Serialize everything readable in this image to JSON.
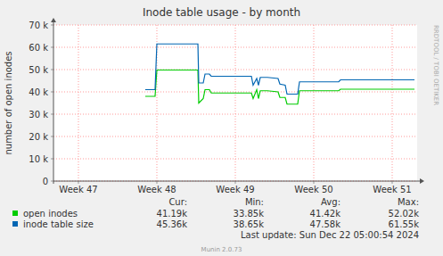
{
  "chart_data": {
    "type": "line",
    "title": "Inode table usage - by month",
    "y_label": "number of open inodes",
    "watermark": "RRDTOOL / TOBI OETIKER",
    "last_update": "Last update: Sun Dec 22 05:00:54 2024",
    "credit": "Munin 2.0.73",
    "stats_headers": [
      "Cur:",
      "Min:",
      "Avg:",
      "Max:"
    ],
    "x": [
      47.852,
      47.977,
      48.0,
      48.523,
      48.534,
      48.591,
      48.614,
      48.67,
      48.693,
      49.205,
      49.227,
      49.273,
      49.295,
      49.318,
      49.409,
      49.545,
      49.568,
      49.636,
      49.659,
      49.795,
      49.818,
      50.318,
      50.341,
      51.284
    ],
    "series": [
      {
        "name": "open inodes",
        "color": "#00cc00",
        "stats": [
          "41.19k",
          "33.85k",
          "41.42k",
          "52.02k"
        ],
        "values": [
          38000,
          38000,
          49800,
          49800,
          35000,
          37000,
          41000,
          41000,
          39500,
          39500,
          37000,
          41000,
          37000,
          40500,
          40500,
          40000,
          37500,
          37500,
          34500,
          34500,
          40500,
          40500,
          41200,
          41200
        ]
      },
      {
        "name": "inode table size",
        "color": "#0066b3",
        "stats": [
          "45.36k",
          "38.65k",
          "47.58k",
          "61.55k"
        ],
        "values": [
          41000,
          41000,
          61500,
          61500,
          44000,
          44000,
          48000,
          48000,
          47000,
          47000,
          43000,
          46000,
          43000,
          46500,
          46500,
          46000,
          43500,
          43000,
          39000,
          39000,
          44500,
          44500,
          45400,
          45400
        ]
      }
    ],
    "xlim": [
      46.682,
      51.318
    ],
    "xticks": [
      {
        "value": 47,
        "label": "Week 47"
      },
      {
        "value": 48,
        "label": "Week 48"
      },
      {
        "value": 49,
        "label": "Week 49"
      },
      {
        "value": 50,
        "label": "Week 50"
      },
      {
        "value": 51,
        "label": "Week 51"
      }
    ],
    "ylim": [
      0,
      70000
    ],
    "yticks": [
      {
        "value": 0,
        "label": "0"
      },
      {
        "value": 10000,
        "label": "10 k"
      },
      {
        "value": 20000,
        "label": "20 k"
      },
      {
        "value": 30000,
        "label": "30 k"
      },
      {
        "value": 40000,
        "label": "40 k"
      },
      {
        "value": 50000,
        "label": "50 k"
      },
      {
        "value": 60000,
        "label": "60 k"
      },
      {
        "value": 70000,
        "label": "70 k"
      }
    ],
    "grid": true,
    "legend": "bottom"
  }
}
